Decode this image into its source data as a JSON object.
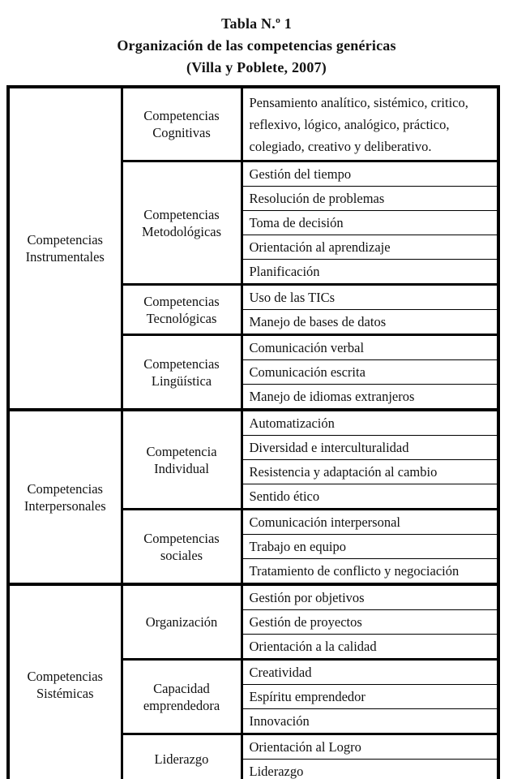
{
  "title": {
    "line1": "Tabla N.º 1",
    "line2": "Organización de las competencias genéricas",
    "line3": "(Villa y Poblete, 2007)"
  },
  "table": {
    "groups": [
      {
        "label": "Competencias Instrumentales",
        "subs": [
          {
            "label": "Competencias Cognitivas",
            "items": [
              "Pensamiento analítico, sistémico, critico, reflexivo, lógico, analógico, práctico, colegiado, creativo y deliberativo."
            ]
          },
          {
            "label": "Competencias Metodológicas",
            "items": [
              "Gestión del tiempo",
              "Resolución de problemas",
              "Toma de decisión",
              "Orientación al aprendizaje",
              "Planificación"
            ]
          },
          {
            "label": "Competencias Tecnológicas",
            "items": [
              "Uso de las TICs",
              "Manejo de bases de datos"
            ]
          },
          {
            "label": "Competencias Lingüística",
            "items": [
              "Comunicación verbal",
              "Comunicación escrita",
              "Manejo de idiomas extranjeros"
            ]
          }
        ]
      },
      {
        "label": "Competencias Interpersonales",
        "subs": [
          {
            "label": "Competencia Individual",
            "items": [
              "Automatización",
              "Diversidad e interculturalidad",
              "Resistencia y adaptación al cambio",
              "Sentido ético"
            ]
          },
          {
            "label": "Competencias sociales",
            "items": [
              "Comunicación interpersonal",
              "Trabajo en equipo",
              "Tratamiento de conflicto y negociación"
            ]
          }
        ]
      },
      {
        "label": "Competencias Sistémicas",
        "subs": [
          {
            "label": "Organización",
            "items": [
              "Gestión por objetivos",
              "Gestión de proyectos",
              "Orientación a la calidad"
            ]
          },
          {
            "label": "Capacidad emprendedora",
            "items": [
              "Creatividad",
              "Espíritu emprendedor",
              "Innovación"
            ]
          },
          {
            "label": "Liderazgo",
            "items": [
              "Orientación al Logro",
              "Liderazgo"
            ]
          }
        ]
      }
    ]
  }
}
